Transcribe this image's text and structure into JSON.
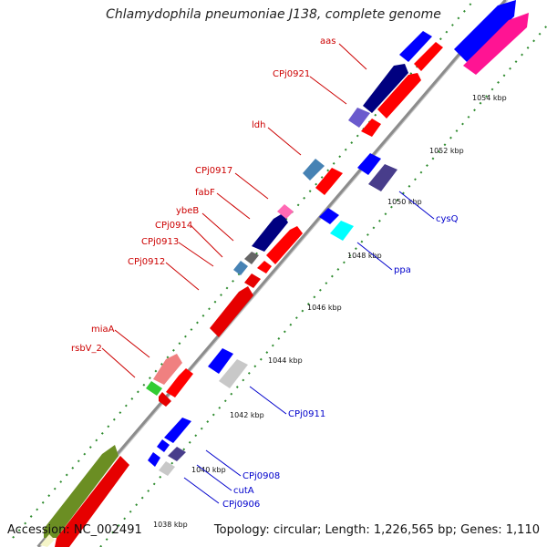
{
  "title": "Chlamydophila pneumoniae J138, complete genome",
  "footer": {
    "accession": "Accession: NC_002491",
    "stats": "Topology: circular; Length: 1,226,565 bp; Genes: 1,110"
  },
  "colors": {
    "label_top": "#cc0000",
    "label_bottom": "#0000cc",
    "axis": "#8c8c8c",
    "tick": "#2e8b2e"
  },
  "ticks": [
    "1038 kbp",
    "1040 kbp",
    "1042 kbp",
    "1044 kbp",
    "1046 kbp",
    "1048 kbp",
    "1050 kbp",
    "1052 kbp",
    "1054 kbp"
  ],
  "gene_labels_top": [
    "aas",
    "CPj0921",
    "ldh",
    "CPj0917",
    "fabF",
    "ybeB",
    "CPj0914",
    "CPj0913",
    "CPj0912",
    "miaA",
    "rsbV_2"
  ],
  "gene_labels_bottom": [
    "cysQ",
    "ppa",
    "CPj0911",
    "CPj0908",
    "cutA",
    "CPj0906"
  ]
}
